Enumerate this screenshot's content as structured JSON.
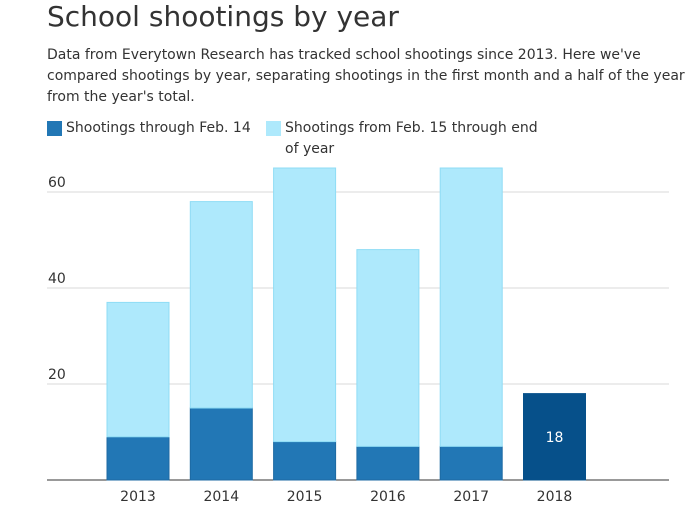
{
  "title": "School shootings by year",
  "subtitle": "Data from Everytown Research has tracked school shootings since 2013. Here we've compared shootings by year, separating shootings in the first month and a half of the year from the year's total.",
  "chart_data": {
    "type": "bar",
    "stacked": true,
    "categories": [
      "2013",
      "2014",
      "2015",
      "2016",
      "2017",
      "2018"
    ],
    "series": [
      {
        "name": "Shootings through Feb. 14",
        "values": [
          9,
          15,
          8,
          7,
          7,
          18
        ],
        "color": "#2277b5"
      },
      {
        "name": "Shootings from Feb. 15 through end of year",
        "values": [
          28,
          43,
          57,
          41,
          58,
          0
        ],
        "color": "#aee9fc"
      }
    ],
    "highlight": {
      "category": "2018",
      "color": "#06508a",
      "label": "18"
    },
    "yticks": [
      20,
      40,
      60
    ],
    "ylim": [
      0,
      70
    ],
    "grid": true,
    "legend": "top-left"
  }
}
